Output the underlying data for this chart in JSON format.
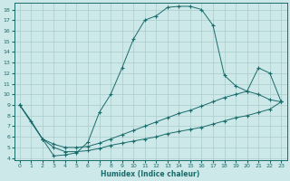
{
  "xlabel": "Humidex (Indice chaleur)",
  "bg_color": "#cce8e8",
  "grid_color": "#aacccc",
  "line_color": "#1a6b6b",
  "xlim": [
    -0.5,
    23.5
  ],
  "ylim": [
    3.8,
    18.6
  ],
  "xticks": [
    0,
    1,
    2,
    3,
    4,
    5,
    6,
    7,
    8,
    9,
    10,
    11,
    12,
    13,
    14,
    15,
    16,
    17,
    18,
    19,
    20,
    21,
    22,
    23
  ],
  "yticks": [
    4,
    5,
    6,
    7,
    8,
    9,
    10,
    11,
    12,
    13,
    14,
    15,
    16,
    17,
    18
  ],
  "main_x": [
    0,
    1,
    2,
    3,
    4,
    5,
    6,
    7,
    8,
    9,
    10,
    11,
    12,
    13,
    14,
    15,
    16,
    17,
    18,
    19,
    20,
    21,
    22,
    23
  ],
  "main_y": [
    9.0,
    7.5,
    5.8,
    4.2,
    4.3,
    4.5,
    5.5,
    8.3,
    10.0,
    12.5,
    15.2,
    17.0,
    17.4,
    18.2,
    18.3,
    18.3,
    18.0,
    16.5,
    11.8,
    10.8,
    10.3,
    12.5,
    12.0,
    9.3
  ],
  "upper_x": [
    0,
    2,
    3,
    4,
    5,
    6,
    7,
    8,
    9,
    10,
    11,
    12,
    13,
    14,
    15,
    16,
    17,
    18,
    19,
    20,
    21,
    22,
    23
  ],
  "upper_y": [
    9.0,
    5.8,
    5.3,
    5.0,
    5.0,
    5.1,
    5.4,
    5.8,
    6.2,
    6.6,
    7.0,
    7.4,
    7.8,
    8.2,
    8.5,
    8.9,
    9.3,
    9.7,
    10.0,
    10.3,
    10.0,
    9.5,
    9.3
  ],
  "lower_x": [
    0,
    2,
    3,
    4,
    5,
    6,
    7,
    8,
    9,
    10,
    11,
    12,
    13,
    14,
    15,
    16,
    17,
    18,
    19,
    20,
    21,
    22,
    23
  ],
  "lower_y": [
    9.0,
    5.8,
    5.0,
    4.6,
    4.6,
    4.7,
    4.9,
    5.2,
    5.4,
    5.6,
    5.8,
    6.0,
    6.3,
    6.5,
    6.7,
    6.9,
    7.2,
    7.5,
    7.8,
    8.0,
    8.3,
    8.6,
    9.3
  ]
}
